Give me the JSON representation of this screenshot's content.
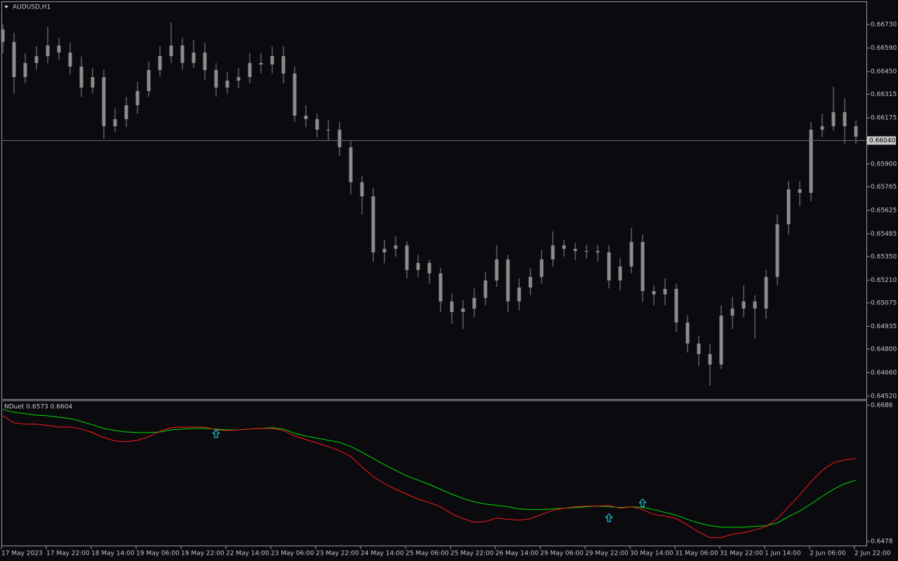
{
  "chart_data": [
    {
      "type": "candlestick",
      "title": "AUDUSD,H1",
      "color": "#8c8c8c",
      "categories": [
        "17 May 2023",
        null,
        null,
        null,
        "17 May 22:00",
        null,
        null,
        null,
        "18 May 14:00",
        null,
        null,
        null,
        "19 May 06:00",
        null,
        null,
        null,
        "19 May 22:00",
        null,
        null,
        null,
        "22 May 14:00",
        null,
        null,
        null,
        "23 May 06:00",
        null,
        null,
        null,
        "23 May 22:00",
        null,
        null,
        null,
        "24 May 14:00",
        null,
        null,
        null,
        "25 May 06:00",
        null,
        null,
        null,
        "25 May 22:00",
        null,
        null,
        null,
        "26 May 14:00",
        null,
        null,
        null,
        "29 May 06:00",
        null,
        null,
        null,
        "29 May 22:00",
        null,
        null,
        null,
        "30 May 14:00",
        null,
        null,
        null,
        "31 May 06:00",
        null,
        null,
        null,
        "31 May 22:00",
        null,
        null,
        null,
        "1 Jun 14:00",
        null,
        null,
        null,
        "2 Jun 06:00",
        null,
        null,
        null,
        "2 Jun 22:00"
      ],
      "open": [
        0.667,
        0.66626,
        0.66417,
        0.66501,
        0.66542,
        0.66605,
        0.66563,
        0.6648,
        0.66355,
        0.66417,
        0.66125,
        0.66167,
        0.6625,
        0.66334,
        0.66459,
        0.66542,
        0.66605,
        0.66501,
        0.66563,
        0.66459,
        0.66355,
        0.66396,
        0.66417,
        0.66501,
        0.66492,
        0.66542,
        0.66438,
        0.66188,
        0.66167,
        0.66104,
        0.66104,
        0.66,
        0.65792,
        0.65708,
        0.65375,
        0.65396,
        0.65416,
        0.6527,
        0.65312,
        0.6525,
        0.65083,
        0.6502,
        0.65041,
        0.65104,
        0.65208,
        0.65333,
        0.65083,
        0.65166,
        0.65229,
        0.65333,
        0.65416,
        0.65396,
        0.65383,
        0.65383,
        0.65375,
        0.65208,
        0.65291,
        0.65437,
        0.65145,
        0.65125,
        0.65158,
        0.64958,
        0.64833,
        0.6477,
        0.64708,
        0.64999,
        0.65041,
        0.65083,
        0.65041,
        0.65229,
        0.65542,
        0.6575,
        0.65729,
        0.66104,
        0.66125,
        0.66209,
        0.66125
      ],
      "high": [
        0.6673,
        0.6668,
        0.6656,
        0.666,
        0.66717,
        0.6665,
        0.6662,
        0.6654,
        0.6647,
        0.6646,
        0.6623,
        0.663,
        0.6639,
        0.6651,
        0.666,
        0.66742,
        0.6665,
        0.6664,
        0.6662,
        0.665,
        0.6645,
        0.6647,
        0.6656,
        0.6656,
        0.666,
        0.666,
        0.6648,
        0.6625,
        0.662,
        0.6616,
        0.6615,
        0.6604,
        0.6583,
        0.6576,
        0.6545,
        0.6547,
        0.6544,
        0.6536,
        0.6533,
        0.6528,
        0.6513,
        0.6509,
        0.6516,
        0.6526,
        0.6542,
        0.6536,
        0.6522,
        0.6528,
        0.6539,
        0.655,
        0.6545,
        0.6543,
        0.6542,
        0.6542,
        0.6542,
        0.6534,
        0.6552,
        0.6548,
        0.6518,
        0.6522,
        0.6519,
        0.65,
        0.6488,
        0.6483,
        0.6506,
        0.6511,
        0.6518,
        0.6512,
        0.6527,
        0.656,
        0.658,
        0.658,
        0.6615,
        0.662,
        0.6636,
        0.6629,
        0.6616
      ],
      "low": [
        0.6656,
        0.6632,
        0.6638,
        0.6646,
        0.665,
        0.6652,
        0.6643,
        0.663,
        0.6632,
        0.6605,
        0.6609,
        0.6612,
        0.662,
        0.663,
        0.6642,
        0.665,
        0.6646,
        0.6647,
        0.664,
        0.663,
        0.6632,
        0.6635,
        0.6638,
        0.6644,
        0.6644,
        0.6638,
        0.6615,
        0.6612,
        0.6606,
        0.6604,
        0.6595,
        0.6572,
        0.656,
        0.6532,
        0.6531,
        0.6535,
        0.6522,
        0.6523,
        0.6519,
        0.6502,
        0.6495,
        0.6492,
        0.6499,
        0.6506,
        0.6517,
        0.6502,
        0.6503,
        0.6512,
        0.6519,
        0.6529,
        0.6535,
        0.6533,
        0.6534,
        0.6532,
        0.6516,
        0.6515,
        0.6525,
        0.6508,
        0.6506,
        0.6506,
        0.649,
        0.6478,
        0.647,
        0.64583,
        0.6468,
        0.6492,
        0.6499,
        0.6486,
        0.6498,
        0.6518,
        0.6548,
        0.6565,
        0.6568,
        0.6606,
        0.661,
        0.6602,
        0.6602
      ],
      "close": [
        0.66626,
        0.66417,
        0.66501,
        0.66542,
        0.66605,
        0.66563,
        0.6648,
        0.66355,
        0.66417,
        0.66125,
        0.66167,
        0.6625,
        0.66334,
        0.66459,
        0.66542,
        0.66605,
        0.66501,
        0.66563,
        0.66459,
        0.66355,
        0.66396,
        0.66417,
        0.66501,
        0.66492,
        0.66542,
        0.66438,
        0.66188,
        0.66167,
        0.66104,
        0.66104,
        0.66,
        0.65792,
        0.65708,
        0.65375,
        0.65396,
        0.65416,
        0.6527,
        0.65312,
        0.6525,
        0.65083,
        0.6502,
        0.65041,
        0.65104,
        0.65208,
        0.65333,
        0.65083,
        0.65166,
        0.65229,
        0.65333,
        0.65416,
        0.65396,
        0.65383,
        0.65383,
        0.65375,
        0.65208,
        0.65291,
        0.65437,
        0.65145,
        0.65125,
        0.65158,
        0.64958,
        0.64833,
        0.6477,
        0.64708,
        0.64999,
        0.65041,
        0.65083,
        0.65041,
        0.65229,
        0.65542,
        0.6575,
        0.65729,
        0.66104,
        0.66125,
        0.66209,
        0.66125,
        0.66063
      ],
      "ylim": [
        0.64503,
        0.66863
      ],
      "yticks": [
        {
          "value": 0.6673,
          "label": "0.66730"
        },
        {
          "value": 0.6659,
          "label": "0.66590"
        },
        {
          "value": 0.6645,
          "label": "0.66450"
        },
        0.66315,
        0.66175,
        {
          "value": 0.659,
          "label": "0.65900"
        },
        0.65765,
        0.65625,
        0.65485,
        {
          "value": 0.6535,
          "label": "0.65350"
        },
        {
          "value": 0.6521,
          "label": "0.65210"
        },
        0.65075,
        0.64935,
        {
          "value": 0.648,
          "label": "0.64800"
        },
        {
          "value": 0.6466,
          "label": "0.64660"
        },
        {
          "value": 0.6452,
          "label": "0.64520"
        }
      ],
      "current_price": {
        "value": 0.6604,
        "label": "0.66040"
      }
    },
    {
      "type": "line",
      "title": "NDuet 0.6573 0.6604",
      "series": [
        {
          "color": "#00e000",
          "values": [
            0.66796,
            0.66753,
            0.66732,
            0.6671,
            0.667,
            0.66678,
            0.66657,
            0.66614,
            0.6656,
            0.66507,
            0.66475,
            0.66453,
            0.66443,
            0.66443,
            0.66453,
            0.66485,
            0.66496,
            0.66507,
            0.66507,
            0.66496,
            0.66485,
            0.66485,
            0.66496,
            0.66507,
            0.66518,
            0.66496,
            0.66432,
            0.66389,
            0.66357,
            0.66325,
            0.66293,
            0.66229,
            0.66143,
            0.66047,
            0.65951,
            0.65865,
            0.65779,
            0.65715,
            0.65651,
            0.65576,
            0.65501,
            0.65437,
            0.65383,
            0.65351,
            0.6533,
            0.65309,
            0.65276,
            0.65266,
            0.65266,
            0.65276,
            0.65287,
            0.65298,
            0.65309,
            0.65319,
            0.65309,
            0.65298,
            0.65309,
            0.65298,
            0.65266,
            0.65223,
            0.6518,
            0.65116,
            0.65062,
            0.6502,
            0.64998,
            0.64998,
            0.64998,
            0.65009,
            0.6502,
            0.65062,
            0.65159,
            0.65244,
            0.65351,
            0.65469,
            0.65576,
            0.65662,
            0.65715
          ]
        },
        {
          "color": "#ff1a1a",
          "values": [
            0.667,
            0.66593,
            0.66571,
            0.66571,
            0.6655,
            0.66528,
            0.66528,
            0.66496,
            0.66443,
            0.66368,
            0.66314,
            0.66304,
            0.66325,
            0.66379,
            0.66464,
            0.66518,
            0.66528,
            0.66528,
            0.66528,
            0.66485,
            0.66475,
            0.66485,
            0.66496,
            0.66507,
            0.66507,
            0.66475,
            0.66389,
            0.66336,
            0.66282,
            0.66229,
            0.66165,
            0.66079,
            0.65918,
            0.65769,
            0.65662,
            0.65576,
            0.65501,
            0.65426,
            0.65373,
            0.65309,
            0.65202,
            0.65127,
            0.65073,
            0.65084,
            0.65137,
            0.65116,
            0.65105,
            0.65127,
            0.65191,
            0.65255,
            0.65287,
            0.65309,
            0.65319,
            0.65319,
            0.6533,
            0.65287,
            0.65309,
            0.65266,
            0.65191,
            0.65169,
            0.65127,
            0.6503,
            0.64923,
            0.64837,
            0.64837,
            0.64891,
            0.64913,
            0.64955,
            0.65009,
            0.65127,
            0.65309,
            0.6549,
            0.65694,
            0.65865,
            0.65983,
            0.66025,
            0.66047
          ]
        }
      ],
      "arrows": {
        "color": "#19c8d2",
        "index": [
          19,
          54,
          57
        ],
        "values": [
          0.66421,
          0.65137,
          0.65362
        ]
      },
      "ylim": [
        0.64716,
        0.66924
      ],
      "yticks": [
        0.6686,
        0.6478
      ]
    }
  ]
}
